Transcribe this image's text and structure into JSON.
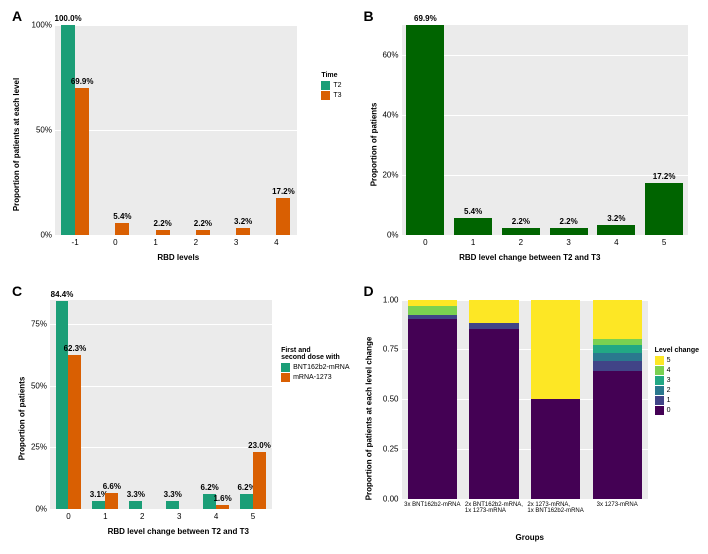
{
  "panelA": {
    "label": "A",
    "type": "grouped-bar",
    "ylabel": "Proportion of patients at each level",
    "xlabel": "RBD levels",
    "ylim": [
      0,
      100
    ],
    "yticks": [
      0,
      50,
      100
    ],
    "yticklabels": [
      "0%",
      "50%",
      "100%"
    ],
    "categories": [
      "-1",
      "0",
      "1",
      "2",
      "3",
      "4"
    ],
    "series": [
      {
        "name": "T2",
        "color": "#1b9e77",
        "values": [
          100.0,
          0,
          0,
          0,
          0,
          0
        ],
        "labels": [
          "100.0%",
          "",
          "",
          "",
          "",
          ""
        ]
      },
      {
        "name": "T3",
        "color": "#d95f02",
        "values": [
          69.9,
          5.4,
          2.2,
          2.2,
          3.2,
          17.2
        ],
        "labels": [
          "69.9%",
          "5.4%",
          "2.2%",
          "2.2%",
          "3.2%",
          "17.2%"
        ]
      }
    ],
    "legend_title": "Time",
    "background": "#ebebeb",
    "grid_color": "#ffffff"
  },
  "panelB": {
    "label": "B",
    "type": "bar",
    "ylabel": "Proportion of patients",
    "xlabel": "RBD level change between T2 and T3",
    "ylim": [
      0,
      70
    ],
    "yticks": [
      0,
      20,
      40,
      60
    ],
    "yticklabels": [
      "0%",
      "20%",
      "40%",
      "60%"
    ],
    "categories": [
      "0",
      "1",
      "2",
      "3",
      "4",
      "5"
    ],
    "color": "#006400",
    "values": [
      69.9,
      5.4,
      2.2,
      2.2,
      3.2,
      17.2
    ],
    "labels": [
      "69.9%",
      "5.4%",
      "2.2%",
      "2.2%",
      "3.2%",
      "17.2%"
    ],
    "background": "#ebebeb",
    "grid_color": "#ffffff"
  },
  "panelC": {
    "label": "C",
    "type": "grouped-bar",
    "ylabel": "Proportion of patients",
    "xlabel": "RBD level change between T2 and T3",
    "ylim": [
      0,
      85
    ],
    "yticks": [
      0,
      25,
      50,
      75
    ],
    "yticklabels": [
      "0%",
      "25%",
      "50%",
      "75%"
    ],
    "categories": [
      "0",
      "1",
      "2",
      "3",
      "4",
      "5"
    ],
    "series": [
      {
        "name": "BNT162b2-mRNA",
        "color": "#1b9e77",
        "values": [
          84.4,
          3.1,
          3.3,
          3.3,
          6.2,
          6.2
        ],
        "labels": [
          "84.4%",
          "3.1%",
          "3.3%",
          "3.3%",
          "6.2%",
          "6.2%"
        ]
      },
      {
        "name": "mRNA-1273",
        "color": "#d95f02",
        "values": [
          62.3,
          6.6,
          0,
          0,
          1.6,
          23.0
        ],
        "labels": [
          "62.3%",
          "6.6%",
          "",
          "",
          "1.6%",
          "23.0%"
        ]
      }
    ],
    "legend_title": "First and\nsecond dose with",
    "background": "#ebebeb",
    "grid_color": "#ffffff"
  },
  "panelD": {
    "label": "D",
    "type": "stacked-bar",
    "ylabel": "Proportion of patients at each level change",
    "xlabel": "Groups",
    "ylim": [
      0,
      1.0
    ],
    "yticks": [
      0,
      0.25,
      0.5,
      0.75,
      1.0
    ],
    "yticklabels": [
      "0.00",
      "0.25",
      "0.50",
      "0.75",
      "1.00"
    ],
    "categories": [
      "3x BNT162b2-mRNA",
      "2x BNT162b2-mRNA,\n1x 1273-mRNA",
      "2x 1273-mRNA,\n1x BNT162b2-mRNA",
      "3x 1273-mRNA"
    ],
    "legend_title": "Level change",
    "levels": [
      "5",
      "4",
      "3",
      "2",
      "1",
      "0"
    ],
    "level_colors": {
      "5": "#fde725",
      "4": "#7ad151",
      "3": "#22a884",
      "2": "#2a788e",
      "1": "#414487",
      "0": "#440154"
    },
    "stacks": [
      {
        "0": 0.9,
        "1": 0.02,
        "4": 0.05,
        "5": 0.03
      },
      {
        "0": 0.85,
        "1": 0.03,
        "5": 0.12
      },
      {
        "0": 0.5,
        "5": 0.5
      },
      {
        "0": 0.64,
        "1": 0.05,
        "2": 0.04,
        "3": 0.04,
        "4": 0.03,
        "5": 0.2
      }
    ],
    "background": "#ebebeb",
    "grid_color": "#ffffff"
  }
}
